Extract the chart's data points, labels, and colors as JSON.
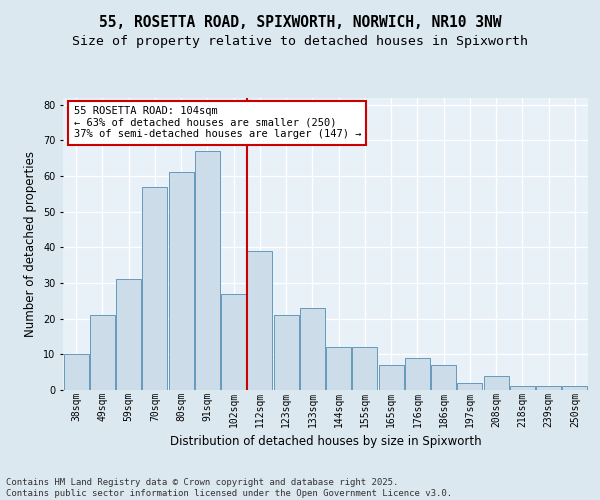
{
  "title_line1": "55, ROSETTA ROAD, SPIXWORTH, NORWICH, NR10 3NW",
  "title_line2": "Size of property relative to detached houses in Spixworth",
  "xlabel": "Distribution of detached houses by size in Spixworth",
  "ylabel": "Number of detached properties",
  "categories": [
    "38sqm",
    "49sqm",
    "59sqm",
    "70sqm",
    "80sqm",
    "91sqm",
    "102sqm",
    "112sqm",
    "123sqm",
    "133sqm",
    "144sqm",
    "155sqm",
    "165sqm",
    "176sqm",
    "186sqm",
    "197sqm",
    "208sqm",
    "218sqm",
    "239sqm",
    "250sqm"
  ],
  "values": [
    10,
    21,
    31,
    57,
    61,
    67,
    27,
    39,
    21,
    23,
    12,
    12,
    7,
    9,
    7,
    2,
    4,
    1,
    1,
    1
  ],
  "bar_color": "#ccdce8",
  "bar_edge_color": "#6699bb",
  "highlight_line_color": "#cc0000",
  "highlight_bar_index": 6,
  "annotation_text": "55 ROSETTA ROAD: 104sqm\n← 63% of detached houses are smaller (250)\n37% of semi-detached houses are larger (147) →",
  "annotation_box_facecolor": "#ffffff",
  "annotation_box_edgecolor": "#cc0000",
  "ylim": [
    0,
    82
  ],
  "yticks": [
    0,
    10,
    20,
    30,
    40,
    50,
    60,
    70,
    80
  ],
  "bg_color": "#dce8f0",
  "plot_bg_color": "#e8f0f8",
  "grid_color": "#ffffff",
  "footer_text": "Contains HM Land Registry data © Crown copyright and database right 2025.\nContains public sector information licensed under the Open Government Licence v3.0.",
  "title_fontsize": 10.5,
  "subtitle_fontsize": 9.5,
  "axis_label_fontsize": 8.5,
  "tick_fontsize": 7,
  "annotation_fontsize": 7.5,
  "footer_fontsize": 6.5
}
